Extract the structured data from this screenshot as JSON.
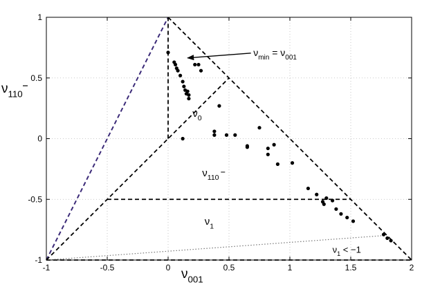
{
  "chart_data": {
    "type": "scatter",
    "xlim": [
      -1,
      2
    ],
    "ylim": [
      -1,
      1
    ],
    "x_ticks": [
      -1,
      -0.5,
      0,
      0.5,
      1,
      1.5,
      2
    ],
    "y_ticks": [
      -1,
      -0.5,
      0,
      0.5,
      1
    ],
    "x_tick_labels": [
      "-1",
      "-0.5",
      "0",
      "0.5",
      "1",
      "1.5",
      "2"
    ],
    "y_tick_labels": [
      "-1",
      "-0.5",
      "0",
      "0.5",
      "1"
    ],
    "grid": true,
    "xlabel": {
      "base": "ν",
      "sub": "001"
    },
    "ylabel": {
      "base": "ν",
      "sub": "110",
      "overbar_on_last": true
    },
    "region_labels": {
      "nu0": {
        "base": "ν",
        "sub": "0",
        "at": [
          0.2,
          0.18
        ]
      },
      "nu110": {
        "base": "ν",
        "sub": "110",
        "at": [
          0.28,
          -0.31
        ]
      },
      "nu1": {
        "base": "ν",
        "sub": "1",
        "at": [
          0.3,
          -0.71
        ]
      },
      "nu1_lt": {
        "base": "ν",
        "sub": "1",
        "suffix": " < −1",
        "at": [
          1.35,
          -0.94
        ]
      }
    },
    "annotation": {
      "text_parts": [
        "ν",
        "min",
        " = ν",
        "001"
      ],
      "text_at": [
        0.7,
        0.68
      ],
      "arrow_from": [
        0.68,
        0.705
      ],
      "arrow_to": [
        0.16,
        0.665
      ]
    },
    "lines": [
      {
        "style": "dashed-purple",
        "color": "#3b2a78",
        "x": [
          -1,
          0
        ],
        "y": [
          -1,
          1
        ]
      },
      {
        "style": "dashed",
        "color": "#000000",
        "x": [
          0,
          2
        ],
        "y": [
          1,
          -1
        ]
      },
      {
        "style": "dashed",
        "color": "#000000",
        "x": [
          -1,
          0.5
        ],
        "y": [
          -1,
          0.5
        ]
      },
      {
        "style": "dashed",
        "color": "#000000",
        "x": [
          0,
          0
        ],
        "y": [
          0,
          1
        ]
      },
      {
        "style": "dashed",
        "color": "#000000",
        "x": [
          -0.5,
          1.5
        ],
        "y": [
          -0.5,
          -0.5
        ]
      },
      {
        "style": "dashed",
        "color": "#000000",
        "x": [
          -1,
          2
        ],
        "y": [
          -1,
          -1
        ]
      },
      {
        "style": "dotted",
        "color": "#777777",
        "x": [
          -1,
          1.75
        ],
        "y": [
          -1,
          -0.8
        ]
      }
    ],
    "points": [
      [
        0.0,
        0.71
      ],
      [
        0.05,
        0.63
      ],
      [
        0.06,
        0.61
      ],
      [
        0.07,
        0.58
      ],
      [
        0.08,
        0.56
      ],
      [
        0.1,
        0.52
      ],
      [
        0.12,
        0.47
      ],
      [
        0.13,
        0.43
      ],
      [
        0.14,
        0.4
      ],
      [
        0.15,
        0.37
      ],
      [
        0.16,
        0.39
      ],
      [
        0.17,
        0.36
      ],
      [
        0.17,
        0.33
      ],
      [
        0.22,
        0.61
      ],
      [
        0.25,
        0.61
      ],
      [
        0.27,
        0.56
      ],
      [
        0.12,
        0.0
      ],
      [
        0.38,
        0.06
      ],
      [
        0.38,
        0.03
      ],
      [
        0.42,
        0.27
      ],
      [
        0.48,
        0.03
      ],
      [
        0.55,
        0.03
      ],
      [
        0.65,
        -0.06
      ],
      [
        0.65,
        -0.07
      ],
      [
        0.75,
        0.09
      ],
      [
        0.82,
        -0.08
      ],
      [
        0.82,
        -0.13
      ],
      [
        0.87,
        -0.05
      ],
      [
        0.9,
        -0.21
      ],
      [
        1.02,
        -0.2
      ],
      [
        1.15,
        -0.41
      ],
      [
        1.22,
        -0.46
      ],
      [
        1.27,
        -0.52
      ],
      [
        1.28,
        -0.54
      ],
      [
        1.3,
        -0.49
      ],
      [
        1.35,
        -0.51
      ],
      [
        1.38,
        -0.58
      ],
      [
        1.42,
        -0.62
      ],
      [
        1.47,
        -0.65
      ],
      [
        1.52,
        -0.68
      ],
      [
        1.77,
        -0.79
      ],
      [
        1.8,
        -0.82
      ],
      [
        1.83,
        -0.84
      ]
    ]
  }
}
